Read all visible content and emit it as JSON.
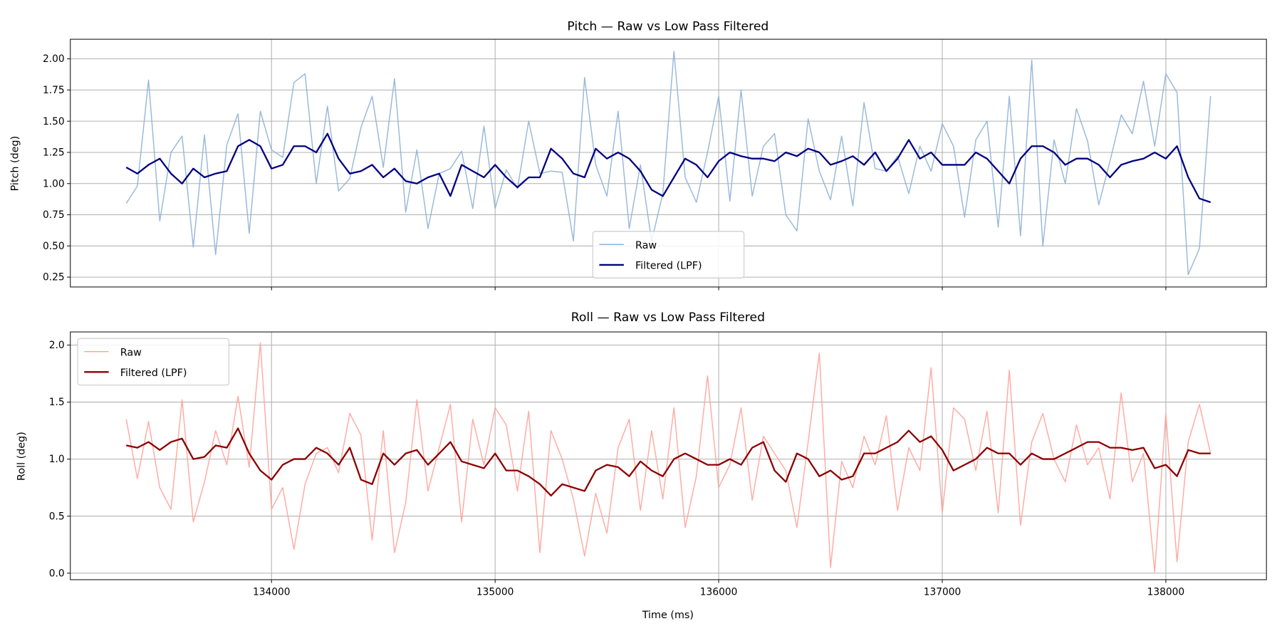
{
  "chart_data": [
    {
      "type": "line",
      "title": "Pitch — Raw vs Low Pass Filtered",
      "xlabel": "",
      "ylabel": "Pitch (deg)",
      "xlim": [
        133100,
        138450
      ],
      "ylim": [
        0.171,
        2.157
      ],
      "xticks": [
        134000,
        135000,
        136000,
        137000,
        138000
      ],
      "yticks": [
        "0.25",
        "0.50",
        "0.75",
        "1.00",
        "1.25",
        "1.50",
        "1.75",
        "2.00"
      ],
      "grid": true,
      "legend": "bottom-center",
      "x": [
        133350,
        133400,
        133450,
        133500,
        133550,
        133600,
        133650,
        133700,
        133750,
        133800,
        133850,
        133900,
        133950,
        134000,
        134050,
        134100,
        134150,
        134200,
        134250,
        134300,
        134350,
        134400,
        134450,
        134500,
        134550,
        134600,
        134650,
        134700,
        134750,
        134800,
        134850,
        134900,
        134950,
        135000,
        135050,
        135100,
        135150,
        135200,
        135250,
        135300,
        135350,
        135400,
        135450,
        135500,
        135550,
        135600,
        135650,
        135700,
        135750,
        135800,
        135850,
        135900,
        135950,
        136000,
        136050,
        136100,
        136150,
        136200,
        136250,
        136300,
        136350,
        136400,
        136450,
        136500,
        136550,
        136600,
        136650,
        136700,
        136750,
        136800,
        136850,
        136900,
        136950,
        137000,
        137050,
        137100,
        137150,
        137200,
        137250,
        137300,
        137350,
        137400,
        137450,
        137500,
        137550,
        137600,
        137650,
        137700,
        137750,
        137800,
        137850,
        137900,
        137950,
        138000,
        138050,
        138100,
        138150,
        138200
      ],
      "series": [
        {
          "name": "Raw",
          "color": "#8fb3d6",
          "values": [
            0.84,
            0.98,
            1.83,
            0.7,
            1.25,
            1.38,
            0.49,
            1.39,
            0.43,
            1.31,
            1.56,
            0.6,
            1.58,
            1.27,
            1.21,
            1.81,
            1.88,
            1.0,
            1.62,
            0.94,
            1.04,
            1.45,
            1.7,
            1.13,
            1.84,
            0.77,
            1.27,
            0.64,
            1.08,
            1.12,
            1.26,
            0.8,
            1.46,
            0.8,
            1.11,
            0.96,
            1.5,
            1.08,
            1.1,
            1.09,
            0.54,
            1.85,
            1.15,
            0.9,
            1.58,
            0.64,
            1.15,
            0.54,
            0.92,
            2.06,
            1.05,
            0.85,
            1.25,
            1.7,
            0.86,
            1.75,
            0.9,
            1.3,
            1.4,
            0.75,
            0.62,
            1.52,
            1.1,
            0.87,
            1.38,
            0.82,
            1.65,
            1.12,
            1.1,
            1.22,
            0.92,
            1.3,
            1.1,
            1.48,
            1.3,
            0.73,
            1.35,
            1.5,
            0.65,
            1.7,
            0.58,
            1.99,
            0.5,
            1.35,
            1.0,
            1.6,
            1.34,
            0.83,
            1.18,
            1.55,
            1.4,
            1.82,
            1.3,
            1.88,
            1.73,
            0.27,
            0.48,
            1.7
          ]
        },
        {
          "name": "Filtered (LPF)",
          "color": "#000080",
          "values": [
            1.13,
            1.08,
            1.15,
            1.2,
            1.08,
            1.0,
            1.12,
            1.05,
            1.08,
            1.1,
            1.3,
            1.35,
            1.3,
            1.12,
            1.15,
            1.3,
            1.3,
            1.25,
            1.4,
            1.2,
            1.08,
            1.1,
            1.15,
            1.05,
            1.12,
            1.02,
            1.0,
            1.05,
            1.08,
            0.9,
            1.15,
            1.1,
            1.05,
            1.15,
            1.05,
            0.97,
            1.05,
            1.05,
            1.28,
            1.2,
            1.08,
            1.05,
            1.28,
            1.2,
            1.25,
            1.2,
            1.1,
            0.95,
            0.9,
            1.05,
            1.2,
            1.15,
            1.05,
            1.18,
            1.25,
            1.22,
            1.2,
            1.2,
            1.18,
            1.25,
            1.22,
            1.28,
            1.25,
            1.15,
            1.18,
            1.22,
            1.15,
            1.25,
            1.1,
            1.2,
            1.35,
            1.2,
            1.25,
            1.15,
            1.15,
            1.15,
            1.25,
            1.2,
            1.1,
            1.0,
            1.2,
            1.3,
            1.3,
            1.25,
            1.15,
            1.2,
            1.2,
            1.15,
            1.05,
            1.15,
            1.18,
            1.2,
            1.25,
            1.2,
            1.3,
            1.05,
            0.88,
            0.85
          ]
        }
      ]
    },
    {
      "type": "line",
      "title": "Roll — Raw vs Low Pass Filtered",
      "xlabel": "Time (ms)",
      "ylabel": "Roll (deg)",
      "xlim": [
        133100,
        138450
      ],
      "ylim": [
        -0.057,
        2.115
      ],
      "xticks": [
        134000,
        135000,
        136000,
        137000,
        138000
      ],
      "yticks": [
        "0.0",
        "0.5",
        "1.0",
        "1.5",
        "2.0"
      ],
      "grid": true,
      "legend": "top-left",
      "x": [
        133350,
        133400,
        133450,
        133500,
        133550,
        133600,
        133650,
        133700,
        133750,
        133800,
        133850,
        133900,
        133950,
        134000,
        134050,
        134100,
        134150,
        134200,
        134250,
        134300,
        134350,
        134400,
        134450,
        134500,
        134550,
        134600,
        134650,
        134700,
        134750,
        134800,
        134850,
        134900,
        134950,
        135000,
        135050,
        135100,
        135150,
        135200,
        135250,
        135300,
        135350,
        135400,
        135450,
        135500,
        135550,
        135600,
        135650,
        135700,
        135750,
        135800,
        135850,
        135900,
        135950,
        136000,
        136050,
        136100,
        136150,
        136200,
        136250,
        136300,
        136350,
        136400,
        136450,
        136500,
        136550,
        136600,
        136650,
        136700,
        136750,
        136800,
        136850,
        136900,
        136950,
        137000,
        137050,
        137100,
        137150,
        137200,
        137250,
        137300,
        137350,
        137400,
        137450,
        137500,
        137550,
        137600,
        137650,
        137700,
        137750,
        137800,
        137850,
        137900,
        137950,
        138000,
        138050,
        138100,
        138150,
        138200
      ],
      "series": [
        {
          "name": "Raw",
          "color": "#ffa39a",
          "values": [
            1.35,
            0.83,
            1.33,
            0.75,
            0.56,
            1.52,
            0.45,
            0.8,
            1.25,
            0.95,
            1.55,
            0.93,
            2.02,
            0.56,
            0.75,
            0.21,
            0.78,
            1.05,
            1.1,
            0.88,
            1.4,
            1.21,
            0.29,
            1.25,
            0.18,
            0.62,
            1.52,
            0.72,
            1.1,
            1.48,
            0.45,
            1.35,
            0.95,
            1.45,
            1.3,
            0.72,
            1.42,
            0.18,
            1.25,
            1.0,
            0.65,
            0.15,
            0.7,
            0.35,
            1.1,
            1.35,
            0.55,
            1.25,
            0.65,
            1.45,
            0.4,
            0.85,
            1.73,
            0.75,
            0.95,
            1.45,
            0.64,
            1.2,
            1.05,
            0.9,
            0.4,
            1.15,
            1.93,
            0.05,
            0.98,
            0.75,
            1.2,
            0.95,
            1.38,
            0.55,
            1.1,
            0.9,
            1.8,
            0.53,
            1.45,
            1.35,
            0.9,
            1.42,
            0.53,
            1.78,
            0.42,
            1.15,
            1.4,
            1.0,
            0.8,
            1.3,
            0.95,
            1.1,
            0.65,
            1.58,
            0.8,
            1.05,
            0.01,
            1.4,
            0.1,
            1.15,
            1.48,
            1.05
          ]
        },
        {
          "name": "Filtered (LPF)",
          "color": "#8b0000",
          "values": [
            1.12,
            1.1,
            1.15,
            1.08,
            1.15,
            1.18,
            1.0,
            1.02,
            1.12,
            1.1,
            1.27,
            1.05,
            0.9,
            0.82,
            0.95,
            1.0,
            1.0,
            1.1,
            1.05,
            0.95,
            1.1,
            0.82,
            0.78,
            1.05,
            0.95,
            1.05,
            1.08,
            0.95,
            1.05,
            1.15,
            0.98,
            0.95,
            0.92,
            1.05,
            0.9,
            0.9,
            0.85,
            0.78,
            0.68,
            0.78,
            0.75,
            0.72,
            0.9,
            0.95,
            0.93,
            0.85,
            0.98,
            0.9,
            0.85,
            1.0,
            1.05,
            1.0,
            0.95,
            0.95,
            1.0,
            0.95,
            1.1,
            1.15,
            0.9,
            0.8,
            1.05,
            1.0,
            0.85,
            0.9,
            0.82,
            0.85,
            1.05,
            1.05,
            1.1,
            1.15,
            1.25,
            1.15,
            1.2,
            1.08,
            0.9,
            0.95,
            1.0,
            1.1,
            1.05,
            1.05,
            0.95,
            1.05,
            1.0,
            1.0,
            1.05,
            1.1,
            1.15,
            1.15,
            1.1,
            1.1,
            1.08,
            1.1,
            0.92,
            0.95,
            0.85,
            1.08,
            1.05,
            1.05
          ]
        }
      ]
    }
  ]
}
